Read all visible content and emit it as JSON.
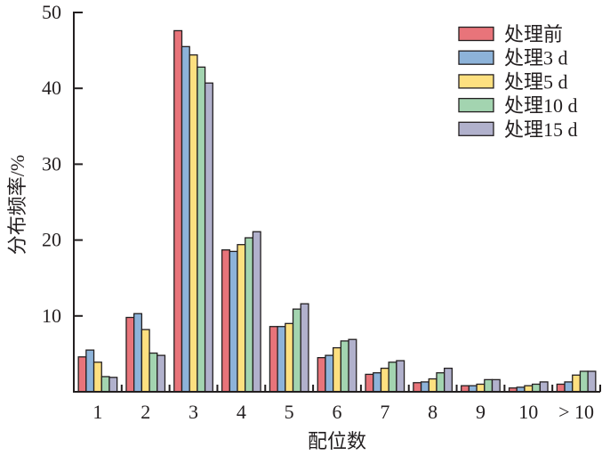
{
  "chart_data": {
    "type": "bar",
    "title": "",
    "xlabel": "配位数",
    "ylabel": "分布频率/%",
    "ylim": [
      0,
      50
    ],
    "yticks": [
      10,
      20,
      30,
      40,
      50
    ],
    "categories": [
      "1",
      "2",
      "3",
      "4",
      "5",
      "6",
      "7",
      "8",
      "9",
      "10",
      "> 10"
    ],
    "legend_position": "top-right",
    "grid": false,
    "series": [
      {
        "name": "处理前",
        "color": "#e8747a",
        "values": [
          4.6,
          9.8,
          47.6,
          18.7,
          8.6,
          4.5,
          2.3,
          1.2,
          0.8,
          0.5,
          1.0
        ]
      },
      {
        "name": "处理3 d",
        "color": "#8db3d9",
        "values": [
          5.5,
          10.3,
          45.5,
          18.5,
          8.6,
          4.8,
          2.5,
          1.3,
          0.8,
          0.6,
          1.3
        ]
      },
      {
        "name": "处理5 d",
        "color": "#fde080",
        "values": [
          3.9,
          8.2,
          44.4,
          19.4,
          9.0,
          5.8,
          3.1,
          1.7,
          1.0,
          0.8,
          2.2
        ]
      },
      {
        "name": "处理10 d",
        "color": "#a3d4b0",
        "values": [
          2.0,
          5.1,
          42.8,
          20.3,
          10.9,
          6.7,
          3.9,
          2.5,
          1.6,
          1.0,
          2.7
        ]
      },
      {
        "name": "处理15 d",
        "color": "#b1b1cc",
        "values": [
          1.9,
          4.8,
          40.7,
          21.1,
          11.6,
          6.9,
          4.1,
          3.1,
          1.6,
          1.3,
          2.7
        ]
      }
    ]
  }
}
